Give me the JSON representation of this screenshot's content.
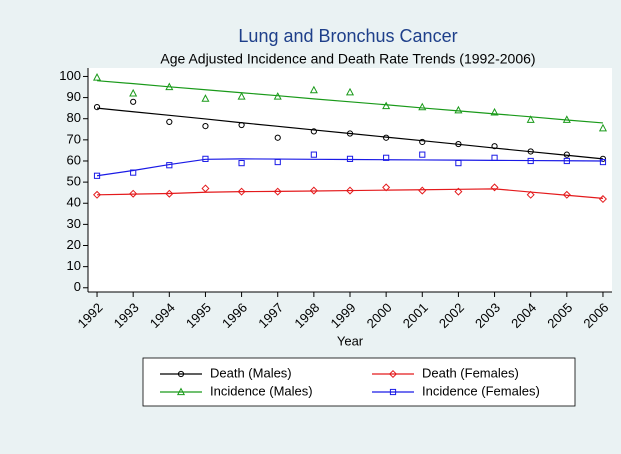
{
  "chart_data": {
    "type": "scatter-fit",
    "title": "Lung and Bronchus Cancer",
    "subtitle": "Age Adjusted Incidence and Death Rate Trends (1992-2006)",
    "xlabel": "Year",
    "x": [
      1992,
      1993,
      1994,
      1995,
      1996,
      1997,
      1998,
      1999,
      2000,
      2001,
      2002,
      2003,
      2004,
      2005,
      2006
    ],
    "xlim": [
      1991.75,
      2006.25
    ],
    "ylim": [
      -2,
      104
    ],
    "yticks": [
      0,
      10,
      20,
      30,
      40,
      50,
      60,
      70,
      80,
      90,
      100
    ],
    "series": [
      {
        "name": "Death (Males)",
        "color": "#000000",
        "marker": "circle",
        "values": [
          85.5,
          88,
          78.5,
          76.5,
          77,
          71,
          74,
          73,
          71,
          69,
          68,
          67,
          64.5,
          63,
          61
        ],
        "fit": [
          85,
          83.3,
          81.6,
          79.9,
          78.1,
          76.4,
          74.7,
          73,
          71.3,
          69.6,
          67.9,
          66.1,
          64.4,
          62.7,
          61
        ]
      },
      {
        "name": "Death (Females)",
        "color": "#e41a1c",
        "marker": "diamond",
        "values": [
          44,
          44.5,
          44.5,
          47,
          45.5,
          45.5,
          46,
          46,
          47.5,
          46,
          45.5,
          47.5,
          44,
          44,
          42
        ],
        "fit": [
          44,
          44.3,
          44.6,
          45.2,
          45.5,
          45.6,
          45.8,
          46,
          46.2,
          46.4,
          46.6,
          46.8,
          45.3,
          43.8,
          42.3
        ]
      },
      {
        "name": "Incidence (Males)",
        "color": "#1a9a1a",
        "marker": "triangle",
        "values": [
          99.5,
          92,
          95,
          89.5,
          90.5,
          90.5,
          93.5,
          92.5,
          86,
          85.5,
          84,
          83,
          79.5,
          79.5,
          75.5
        ],
        "fit": [
          98,
          96.6,
          95.1,
          93.7,
          92.3,
          90.9,
          89.4,
          88,
          86.6,
          85.1,
          83.7,
          82.3,
          80.9,
          79.4,
          78
        ]
      },
      {
        "name": "Incidence (Females)",
        "color": "#1a1ae6",
        "marker": "square",
        "values": [
          53,
          54.5,
          58,
          61,
          59,
          59.5,
          63,
          61,
          61.5,
          63,
          59,
          61.5,
          60,
          60,
          59.5
        ],
        "fit": [
          53,
          55.5,
          58.3,
          60.8,
          61,
          60.9,
          60.8,
          60.7,
          60.6,
          60.5,
          60.4,
          60.3,
          60.2,
          60.1,
          60
        ]
      }
    ]
  }
}
